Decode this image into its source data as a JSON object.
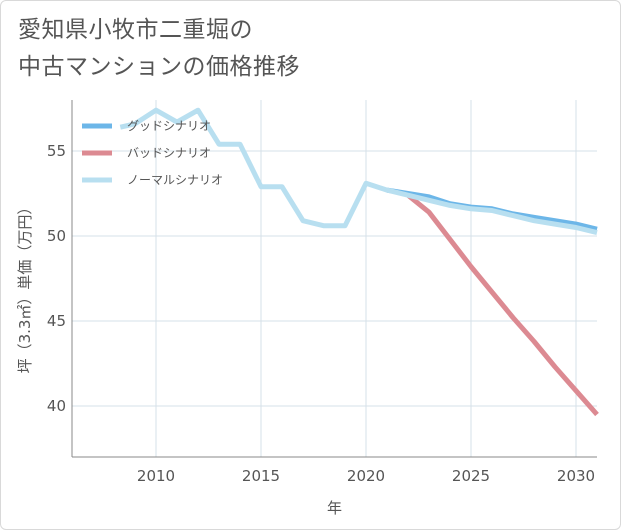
{
  "title_lines": [
    "愛知県小牧市二重堀の",
    "中古マンションの価格推移"
  ],
  "chart_data": {
    "type": "line",
    "xlabel": "年",
    "ylabel": "坪（3.3㎡）単価（万円）",
    "xlim": [
      2006,
      2031
    ],
    "ylim": [
      37,
      58
    ],
    "xticks": [
      2010,
      2015,
      2020,
      2025,
      2030
    ],
    "yticks": [
      40,
      45,
      50,
      55
    ],
    "grid": true,
    "legend_position": "top-left",
    "series": [
      {
        "name": "グッドシナリオ",
        "color": "#6cb6e8",
        "x": [
          2021,
          2022,
          2023,
          2024,
          2025,
          2026,
          2027,
          2028,
          2029,
          2030,
          2031
        ],
        "y": [
          52.7,
          52.5,
          52.3,
          51.9,
          51.7,
          51.6,
          51.3,
          51.1,
          50.9,
          50.7,
          50.4
        ]
      },
      {
        "name": "バッドシナリオ",
        "color": "#dc8a92",
        "x": [
          2022,
          2023,
          2024,
          2025,
          2026,
          2027,
          2028,
          2029,
          2030,
          2031
        ],
        "y": [
          52.4,
          51.4,
          49.8,
          48.2,
          46.7,
          45.2,
          43.8,
          42.3,
          40.9,
          39.5
        ]
      },
      {
        "name": "ノーマルシナリオ",
        "color": "#b8dff0",
        "x": [
          2008.3,
          2009,
          2010,
          2011,
          2012,
          2013,
          2014,
          2015,
          2016,
          2017,
          2018,
          2019,
          2020,
          2021,
          2022,
          2023,
          2024,
          2025,
          2026,
          2027,
          2028,
          2029,
          2030,
          2031
        ],
        "y": [
          56.4,
          56.6,
          57.4,
          56.7,
          57.4,
          55.4,
          55.4,
          52.9,
          52.9,
          50.9,
          50.6,
          50.6,
          53.1,
          52.7,
          52.4,
          52.1,
          51.8,
          51.6,
          51.5,
          51.2,
          50.9,
          50.7,
          50.5,
          50.2
        ]
      }
    ]
  }
}
